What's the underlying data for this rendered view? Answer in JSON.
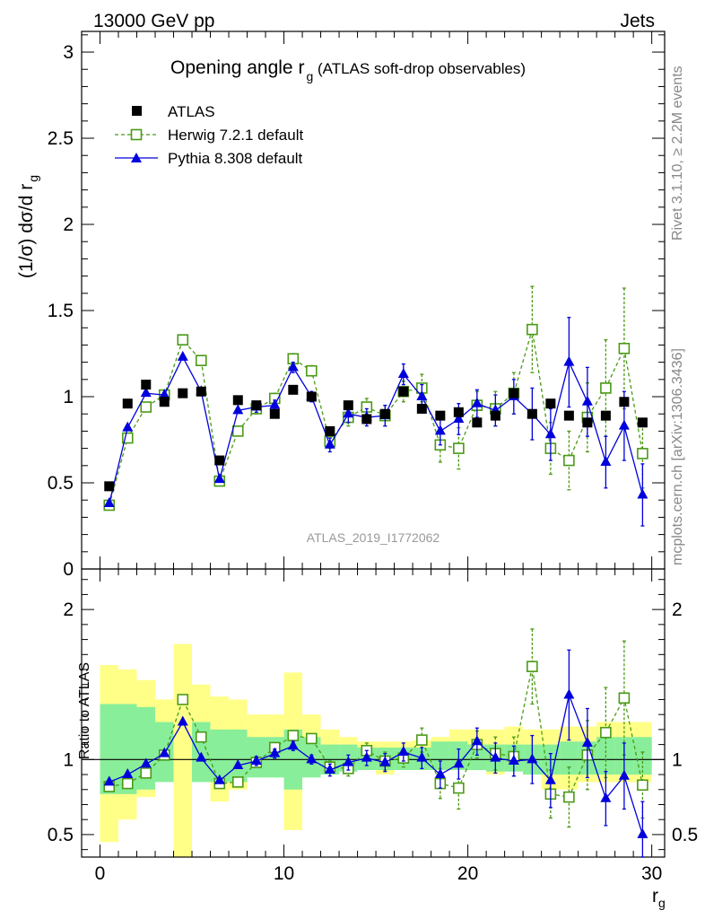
{
  "header": {
    "left": "13000 GeV pp",
    "right": "Jets"
  },
  "side_labels": {
    "rivet": "Rivet 3.1.10, ≥ 2.2M events",
    "mcplots": "mcplots.cern.ch [arXiv:1306.3436]"
  },
  "chart_data": {
    "type": "scatter",
    "title_main": "Opening angle r",
    "title_sub": "g",
    "title_suffix": " (ATLAS soft-drop observables)",
    "ylabel": "(1/σ) dσ/d r",
    "ylabel_sub": "g",
    "xlabel": "r",
    "xlabel_sub": "g",
    "ratio_ylabel": "Ratio to ATLAS",
    "watermark": "ATLAS_2019_I1772062",
    "xlim": [
      -1,
      30.7
    ],
    "ylim": [
      0,
      3.12
    ],
    "ratio_ylim": [
      0.35,
      2.27
    ],
    "x_ticks": [
      0,
      10,
      20,
      30
    ],
    "x_tick_labels": [
      "0",
      "10",
      "20",
      "30"
    ],
    "y_ticks": [
      0,
      0.5,
      1,
      1.5,
      2,
      2.5,
      3
    ],
    "y_tick_labels": [
      "0",
      "0.5",
      "1",
      "1.5",
      "2",
      "2.5",
      "3"
    ],
    "ratio_y_ticks": [
      0.5,
      1,
      2
    ],
    "ratio_y_tick_labels": [
      "0.5",
      "1",
      "2"
    ],
    "x": [
      0.5,
      1.5,
      2.5,
      3.5,
      4.5,
      5.5,
      6.5,
      7.5,
      8.5,
      9.5,
      10.5,
      11.5,
      12.5,
      13.5,
      14.5,
      15.5,
      16.5,
      17.5,
      18.5,
      19.5,
      20.5,
      21.5,
      22.5,
      23.5,
      24.5,
      25.5,
      26.5,
      27.5,
      28.5,
      29.5
    ],
    "band_inner": [
      1.37,
      1.37,
      1.35,
      1.25,
      0.7,
      1.25,
      1.2,
      1.2,
      1.15,
      1.15,
      1.2,
      1.15,
      1.1,
      1.1,
      1.08,
      1.08,
      1.08,
      1.08,
      1.12,
      1.12,
      1.1,
      1.1,
      1.1,
      1.1,
      1.1,
      1.12,
      1.12,
      1.15,
      1.15,
      1.15
    ],
    "band_inner_lo": [
      0.77,
      0.77,
      0.8,
      0.85,
      0.7,
      0.85,
      0.85,
      0.85,
      0.88,
      0.88,
      0.8,
      0.88,
      0.9,
      0.92,
      0.93,
      0.93,
      0.93,
      0.93,
      0.93,
      0.93,
      0.93,
      0.92,
      0.92,
      0.9,
      0.9,
      0.9,
      0.9,
      0.9,
      0.9,
      0.9
    ],
    "band_outer_hi": [
      1.63,
      1.6,
      1.53,
      1.4,
      1.77,
      1.5,
      1.42,
      1.4,
      1.3,
      1.3,
      1.58,
      1.3,
      1.2,
      1.15,
      1.12,
      1.12,
      1.12,
      1.13,
      1.15,
      1.2,
      1.2,
      1.2,
      1.22,
      1.2,
      1.2,
      1.22,
      1.22,
      1.25,
      1.25,
      1.25
    ],
    "band_outer_lo": [
      0.45,
      0.6,
      0.75,
      0.9,
      0.3,
      0.88,
      0.72,
      0.8,
      0.9,
      0.9,
      0.53,
      0.9,
      0.93,
      0.95,
      0.95,
      0.9,
      0.93,
      0.95,
      0.95,
      0.95,
      0.93,
      0.9,
      0.93,
      0.9,
      0.8,
      0.8,
      0.85,
      0.85,
      0.85,
      0.85
    ],
    "series": [
      {
        "name": "ATLAS",
        "marker": "filled-square",
        "color": "#000000",
        "values": [
          0.48,
          0.96,
          1.07,
          0.97,
          1.02,
          1.03,
          0.63,
          0.98,
          0.95,
          0.9,
          1.04,
          1.0,
          0.8,
          0.95,
          0.87,
          0.9,
          1.03,
          0.93,
          0.89,
          0.91,
          0.85,
          0.89,
          1.02,
          0.9,
          0.96,
          0.89,
          0.85,
          0.89,
          0.97,
          0.85
        ],
        "errors": [
          0.0,
          0.0,
          0.0,
          0.0,
          0.0,
          0.0,
          0.0,
          0.0,
          0.0,
          0.0,
          0.0,
          0.0,
          0.0,
          0.0,
          0.0,
          0.0,
          0.0,
          0.0,
          0.0,
          0.0,
          0.0,
          0.0,
          0.0,
          0.0,
          0.0,
          0.0,
          0.0,
          0.0,
          0.0,
          0.0
        ]
      },
      {
        "name": "Herwig 7.2.1 default",
        "marker": "open-square",
        "color": "#4a9a16",
        "dashed": true,
        "values": [
          0.37,
          0.76,
          0.94,
          1.01,
          1.33,
          1.21,
          0.51,
          0.8,
          0.93,
          0.99,
          1.22,
          1.15,
          0.74,
          0.88,
          0.94,
          0.89,
          1.03,
          1.05,
          0.72,
          0.7,
          0.95,
          0.93,
          1.02,
          1.39,
          0.7,
          0.63,
          0.88,
          1.05,
          1.28,
          0.67
        ],
        "errors": [
          0.02,
          0.02,
          0.02,
          0.02,
          0.02,
          0.02,
          0.02,
          0.02,
          0.03,
          0.03,
          0.03,
          0.03,
          0.04,
          0.05,
          0.05,
          0.06,
          0.06,
          0.08,
          0.1,
          0.12,
          0.08,
          0.1,
          0.12,
          0.25,
          0.15,
          0.17,
          0.2,
          0.28,
          0.35,
          0.2
        ],
        "ratio": [
          0.82,
          0.84,
          0.91,
          1.03,
          1.4,
          1.15,
          0.84,
          0.85,
          0.98,
          1.08,
          1.16,
          1.14,
          0.95,
          0.94,
          1.06,
          0.99,
          1.01,
          1.13,
          0.84,
          0.81,
          1.1,
          1.04,
          1.02,
          1.62,
          0.77,
          0.75,
          1.03,
          1.18,
          1.41,
          0.83
        ],
        "ratio_errors": [
          0.02,
          0.02,
          0.02,
          0.02,
          0.02,
          0.02,
          0.02,
          0.02,
          0.03,
          0.03,
          0.03,
          0.03,
          0.04,
          0.05,
          0.05,
          0.06,
          0.06,
          0.08,
          0.1,
          0.14,
          0.09,
          0.11,
          0.13,
          0.25,
          0.16,
          0.2,
          0.23,
          0.3,
          0.38,
          0.22
        ]
      },
      {
        "name": "Pythia 8.308 default",
        "marker": "filled-triangle",
        "color": "#0000dd",
        "values": [
          0.38,
          0.82,
          1.02,
          1.01,
          1.23,
          1.03,
          0.52,
          0.92,
          0.94,
          0.95,
          1.17,
          1.0,
          0.72,
          0.9,
          0.88,
          0.89,
          1.13,
          1.0,
          0.8,
          0.87,
          0.96,
          0.92,
          1.0,
          0.9,
          0.78,
          1.2,
          0.97,
          0.62,
          0.83,
          0.43
        ],
        "errors": [
          0.02,
          0.02,
          0.02,
          0.02,
          0.02,
          0.02,
          0.02,
          0.02,
          0.03,
          0.03,
          0.03,
          0.03,
          0.04,
          0.05,
          0.05,
          0.06,
          0.06,
          0.07,
          0.08,
          0.09,
          0.08,
          0.09,
          0.1,
          0.15,
          0.15,
          0.26,
          0.2,
          0.15,
          0.2,
          0.18
        ],
        "ratio": [
          0.85,
          0.9,
          0.97,
          1.04,
          1.25,
          1.01,
          0.86,
          0.96,
          0.99,
          1.04,
          1.09,
          1.0,
          0.93,
          0.98,
          1.01,
          0.98,
          1.05,
          1.01,
          0.9,
          0.97,
          1.12,
          1.01,
          0.99,
          1.0,
          0.86,
          1.43,
          1.11,
          0.74,
          0.89,
          0.5
        ],
        "ratio_errors": [
          0.02,
          0.02,
          0.02,
          0.02,
          0.02,
          0.02,
          0.02,
          0.02,
          0.03,
          0.03,
          0.03,
          0.03,
          0.04,
          0.05,
          0.05,
          0.06,
          0.06,
          0.07,
          0.09,
          0.1,
          0.09,
          0.1,
          0.1,
          0.16,
          0.18,
          0.3,
          0.23,
          0.18,
          0.22,
          0.22
        ]
      }
    ]
  }
}
